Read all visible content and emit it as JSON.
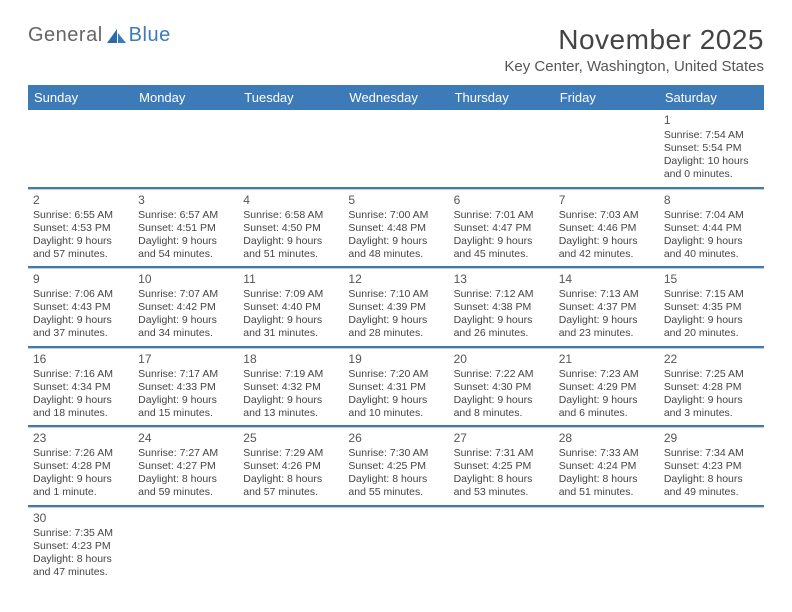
{
  "logo": {
    "part1": "General",
    "part2": "Blue"
  },
  "title": "November 2025",
  "location": "Key Center, Washington, United States",
  "header_bg": "#3d7bb8",
  "daynames": [
    "Sunday",
    "Monday",
    "Tuesday",
    "Wednesday",
    "Thursday",
    "Friday",
    "Saturday"
  ],
  "weeks": [
    [
      null,
      null,
      null,
      null,
      null,
      null,
      {
        "n": "1",
        "sr": "Sunrise: 7:54 AM",
        "ss": "Sunset: 5:54 PM",
        "d1": "Daylight: 10 hours",
        "d2": "and 0 minutes."
      }
    ],
    [
      {
        "n": "2",
        "sr": "Sunrise: 6:55 AM",
        "ss": "Sunset: 4:53 PM",
        "d1": "Daylight: 9 hours",
        "d2": "and 57 minutes."
      },
      {
        "n": "3",
        "sr": "Sunrise: 6:57 AM",
        "ss": "Sunset: 4:51 PM",
        "d1": "Daylight: 9 hours",
        "d2": "and 54 minutes."
      },
      {
        "n": "4",
        "sr": "Sunrise: 6:58 AM",
        "ss": "Sunset: 4:50 PM",
        "d1": "Daylight: 9 hours",
        "d2": "and 51 minutes."
      },
      {
        "n": "5",
        "sr": "Sunrise: 7:00 AM",
        "ss": "Sunset: 4:48 PM",
        "d1": "Daylight: 9 hours",
        "d2": "and 48 minutes."
      },
      {
        "n": "6",
        "sr": "Sunrise: 7:01 AM",
        "ss": "Sunset: 4:47 PM",
        "d1": "Daylight: 9 hours",
        "d2": "and 45 minutes."
      },
      {
        "n": "7",
        "sr": "Sunrise: 7:03 AM",
        "ss": "Sunset: 4:46 PM",
        "d1": "Daylight: 9 hours",
        "d2": "and 42 minutes."
      },
      {
        "n": "8",
        "sr": "Sunrise: 7:04 AM",
        "ss": "Sunset: 4:44 PM",
        "d1": "Daylight: 9 hours",
        "d2": "and 40 minutes."
      }
    ],
    [
      {
        "n": "9",
        "sr": "Sunrise: 7:06 AM",
        "ss": "Sunset: 4:43 PM",
        "d1": "Daylight: 9 hours",
        "d2": "and 37 minutes."
      },
      {
        "n": "10",
        "sr": "Sunrise: 7:07 AM",
        "ss": "Sunset: 4:42 PM",
        "d1": "Daylight: 9 hours",
        "d2": "and 34 minutes."
      },
      {
        "n": "11",
        "sr": "Sunrise: 7:09 AM",
        "ss": "Sunset: 4:40 PM",
        "d1": "Daylight: 9 hours",
        "d2": "and 31 minutes."
      },
      {
        "n": "12",
        "sr": "Sunrise: 7:10 AM",
        "ss": "Sunset: 4:39 PM",
        "d1": "Daylight: 9 hours",
        "d2": "and 28 minutes."
      },
      {
        "n": "13",
        "sr": "Sunrise: 7:12 AM",
        "ss": "Sunset: 4:38 PM",
        "d1": "Daylight: 9 hours",
        "d2": "and 26 minutes."
      },
      {
        "n": "14",
        "sr": "Sunrise: 7:13 AM",
        "ss": "Sunset: 4:37 PM",
        "d1": "Daylight: 9 hours",
        "d2": "and 23 minutes."
      },
      {
        "n": "15",
        "sr": "Sunrise: 7:15 AM",
        "ss": "Sunset: 4:35 PM",
        "d1": "Daylight: 9 hours",
        "d2": "and 20 minutes."
      }
    ],
    [
      {
        "n": "16",
        "sr": "Sunrise: 7:16 AM",
        "ss": "Sunset: 4:34 PM",
        "d1": "Daylight: 9 hours",
        "d2": "and 18 minutes."
      },
      {
        "n": "17",
        "sr": "Sunrise: 7:17 AM",
        "ss": "Sunset: 4:33 PM",
        "d1": "Daylight: 9 hours",
        "d2": "and 15 minutes."
      },
      {
        "n": "18",
        "sr": "Sunrise: 7:19 AM",
        "ss": "Sunset: 4:32 PM",
        "d1": "Daylight: 9 hours",
        "d2": "and 13 minutes."
      },
      {
        "n": "19",
        "sr": "Sunrise: 7:20 AM",
        "ss": "Sunset: 4:31 PM",
        "d1": "Daylight: 9 hours",
        "d2": "and 10 minutes."
      },
      {
        "n": "20",
        "sr": "Sunrise: 7:22 AM",
        "ss": "Sunset: 4:30 PM",
        "d1": "Daylight: 9 hours",
        "d2": "and 8 minutes."
      },
      {
        "n": "21",
        "sr": "Sunrise: 7:23 AM",
        "ss": "Sunset: 4:29 PM",
        "d1": "Daylight: 9 hours",
        "d2": "and 6 minutes."
      },
      {
        "n": "22",
        "sr": "Sunrise: 7:25 AM",
        "ss": "Sunset: 4:28 PM",
        "d1": "Daylight: 9 hours",
        "d2": "and 3 minutes."
      }
    ],
    [
      {
        "n": "23",
        "sr": "Sunrise: 7:26 AM",
        "ss": "Sunset: 4:28 PM",
        "d1": "Daylight: 9 hours",
        "d2": "and 1 minute."
      },
      {
        "n": "24",
        "sr": "Sunrise: 7:27 AM",
        "ss": "Sunset: 4:27 PM",
        "d1": "Daylight: 8 hours",
        "d2": "and 59 minutes."
      },
      {
        "n": "25",
        "sr": "Sunrise: 7:29 AM",
        "ss": "Sunset: 4:26 PM",
        "d1": "Daylight: 8 hours",
        "d2": "and 57 minutes."
      },
      {
        "n": "26",
        "sr": "Sunrise: 7:30 AM",
        "ss": "Sunset: 4:25 PM",
        "d1": "Daylight: 8 hours",
        "d2": "and 55 minutes."
      },
      {
        "n": "27",
        "sr": "Sunrise: 7:31 AM",
        "ss": "Sunset: 4:25 PM",
        "d1": "Daylight: 8 hours",
        "d2": "and 53 minutes."
      },
      {
        "n": "28",
        "sr": "Sunrise: 7:33 AM",
        "ss": "Sunset: 4:24 PM",
        "d1": "Daylight: 8 hours",
        "d2": "and 51 minutes."
      },
      {
        "n": "29",
        "sr": "Sunrise: 7:34 AM",
        "ss": "Sunset: 4:23 PM",
        "d1": "Daylight: 8 hours",
        "d2": "and 49 minutes."
      }
    ],
    [
      {
        "n": "30",
        "sr": "Sunrise: 7:35 AM",
        "ss": "Sunset: 4:23 PM",
        "d1": "Daylight: 8 hours",
        "d2": "and 47 minutes."
      },
      null,
      null,
      null,
      null,
      null,
      null
    ]
  ]
}
